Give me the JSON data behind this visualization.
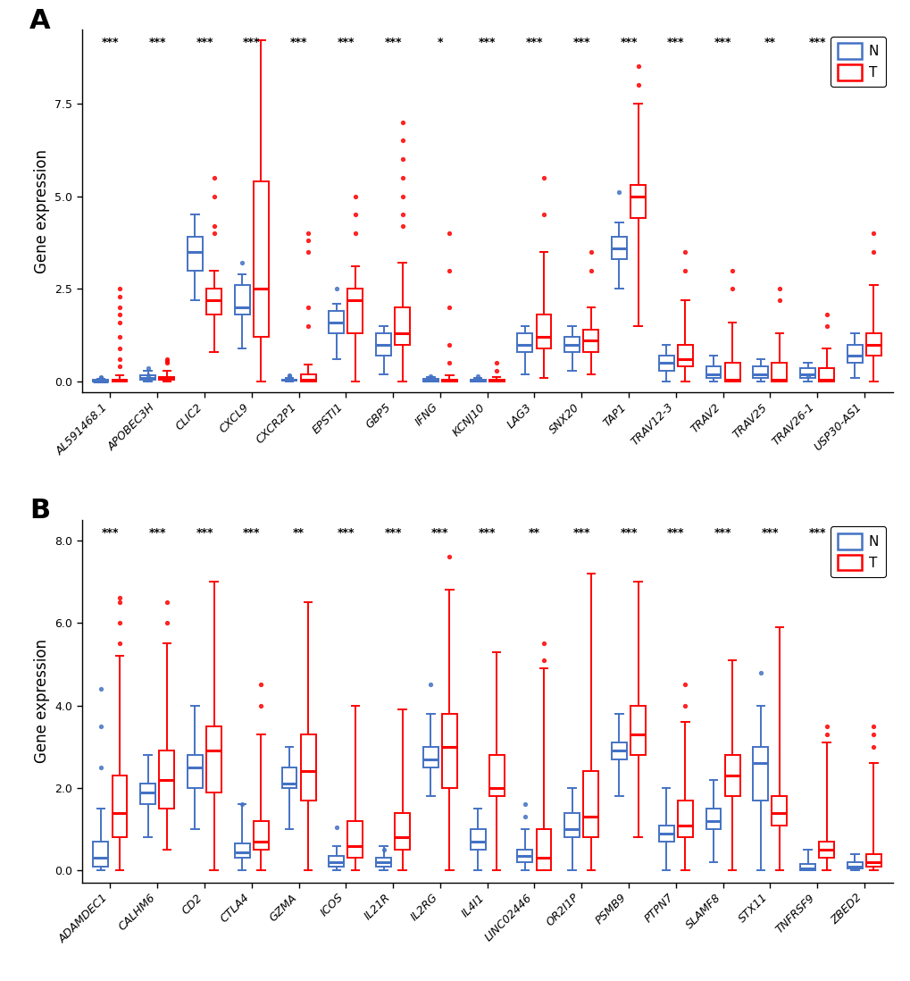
{
  "panel_A": {
    "genes": [
      "AL591468.1",
      "APOBEC3H",
      "CLIC2",
      "CXCL9",
      "CXCR2P1",
      "EPSTI1",
      "GBP5",
      "IFNG",
      "KCNJ10",
      "LAG3",
      "SNX20",
      "TAP1",
      "TRAV12-3",
      "TRAV2",
      "TRAV25",
      "TRAV26-1",
      "USP30-AS1"
    ],
    "significance": [
      "***",
      "***",
      "***",
      "***",
      "***",
      "***",
      "***",
      "*",
      "***",
      "***",
      "***",
      "***",
      "***",
      "***",
      "**",
      "***",
      "***"
    ],
    "ylim": [
      -0.3,
      9.5
    ],
    "yticks": [
      0.0,
      2.5,
      5.0,
      7.5
    ],
    "ytick_labels": [
      "0.0",
      "2.5",
      "5.0",
      "7.5"
    ],
    "ylabel": "Gene expression",
    "normal_boxes": [
      {
        "q1": 0.0,
        "med": 0.01,
        "q3": 0.04,
        "whislo": 0.0,
        "whishi": 0.08,
        "fliers": [
          0.12,
          0.09,
          0.07
        ]
      },
      {
        "q1": 0.05,
        "med": 0.1,
        "q3": 0.17,
        "whislo": 0.0,
        "whishi": 0.28,
        "fliers": [
          0.35,
          0.16
        ]
      },
      {
        "q1": 3.0,
        "med": 3.5,
        "q3": 3.9,
        "whislo": 2.2,
        "whishi": 4.5,
        "fliers": []
      },
      {
        "q1": 1.8,
        "med": 2.0,
        "q3": 2.6,
        "whislo": 0.9,
        "whishi": 2.9,
        "fliers": [
          3.2
        ]
      },
      {
        "q1": 0.02,
        "med": 0.04,
        "q3": 0.06,
        "whislo": 0.0,
        "whishi": 0.1,
        "fliers": [
          0.14,
          0.18
        ]
      },
      {
        "q1": 1.3,
        "med": 1.6,
        "q3": 1.9,
        "whislo": 0.6,
        "whishi": 2.1,
        "fliers": [
          2.5
        ]
      },
      {
        "q1": 0.7,
        "med": 1.0,
        "q3": 1.3,
        "whislo": 0.2,
        "whishi": 1.5,
        "fliers": []
      },
      {
        "q1": 0.01,
        "med": 0.03,
        "q3": 0.07,
        "whislo": 0.0,
        "whishi": 0.12,
        "fliers": [
          0.15
        ]
      },
      {
        "q1": 0.01,
        "med": 0.02,
        "q3": 0.04,
        "whislo": 0.0,
        "whishi": 0.09,
        "fliers": [
          0.14
        ]
      },
      {
        "q1": 0.8,
        "med": 1.0,
        "q3": 1.3,
        "whislo": 0.2,
        "whishi": 1.5,
        "fliers": []
      },
      {
        "q1": 0.8,
        "med": 1.0,
        "q3": 1.2,
        "whislo": 0.3,
        "whishi": 1.5,
        "fliers": []
      },
      {
        "q1": 3.3,
        "med": 3.6,
        "q3": 3.9,
        "whislo": 2.5,
        "whishi": 4.3,
        "fliers": [
          5.1
        ]
      },
      {
        "q1": 0.3,
        "med": 0.5,
        "q3": 0.7,
        "whislo": 0.0,
        "whishi": 1.0,
        "fliers": []
      },
      {
        "q1": 0.1,
        "med": 0.2,
        "q3": 0.4,
        "whislo": 0.0,
        "whishi": 0.7,
        "fliers": []
      },
      {
        "q1": 0.1,
        "med": 0.2,
        "q3": 0.4,
        "whislo": 0.0,
        "whishi": 0.6,
        "fliers": []
      },
      {
        "q1": 0.1,
        "med": 0.2,
        "q3": 0.35,
        "whislo": 0.0,
        "whishi": 0.5,
        "fliers": [
          0.15
        ]
      },
      {
        "q1": 0.5,
        "med": 0.7,
        "q3": 1.0,
        "whislo": 0.1,
        "whishi": 1.3,
        "fliers": []
      }
    ],
    "tumor_boxes": [
      {
        "q1": 0.0,
        "med": 0.02,
        "q3": 0.06,
        "whislo": 0.0,
        "whishi": 0.18,
        "fliers": [
          0.4,
          0.6,
          0.9,
          1.2,
          1.6,
          2.0,
          2.3,
          2.5,
          1.8
        ]
      },
      {
        "q1": 0.06,
        "med": 0.09,
        "q3": 0.13,
        "whislo": 0.0,
        "whishi": 0.28,
        "fliers": [
          0.5,
          0.6,
          0.55
        ]
      },
      {
        "q1": 1.8,
        "med": 2.2,
        "q3": 2.5,
        "whislo": 0.8,
        "whishi": 3.0,
        "fliers": [
          4.0,
          4.2,
          5.0,
          5.5
        ]
      },
      {
        "q1": 1.2,
        "med": 2.5,
        "q3": 5.4,
        "whislo": 0.0,
        "whishi": 9.2,
        "fliers": []
      },
      {
        "q1": 0.0,
        "med": 0.05,
        "q3": 0.2,
        "whislo": 0.0,
        "whishi": 0.45,
        "fliers": [
          1.5,
          2.0,
          3.5,
          4.0,
          3.8
        ]
      },
      {
        "q1": 1.3,
        "med": 2.2,
        "q3": 2.5,
        "whislo": 0.0,
        "whishi": 3.1,
        "fliers": [
          4.0,
          5.0,
          4.5
        ]
      },
      {
        "q1": 1.0,
        "med": 1.3,
        "q3": 2.0,
        "whislo": 0.0,
        "whishi": 3.2,
        "fliers": [
          4.5,
          5.0,
          5.5,
          6.0,
          6.5,
          7.0,
          4.2
        ]
      },
      {
        "q1": 0.01,
        "med": 0.03,
        "q3": 0.06,
        "whislo": 0.0,
        "whishi": 0.18,
        "fliers": [
          0.5,
          1.0,
          2.0,
          3.0,
          4.0
        ]
      },
      {
        "q1": 0.01,
        "med": 0.03,
        "q3": 0.06,
        "whislo": 0.0,
        "whishi": 0.12,
        "fliers": [
          0.3,
          0.5
        ]
      },
      {
        "q1": 0.9,
        "med": 1.2,
        "q3": 1.8,
        "whislo": 0.1,
        "whishi": 3.5,
        "fliers": [
          4.5,
          5.5
        ]
      },
      {
        "q1": 0.8,
        "med": 1.1,
        "q3": 1.4,
        "whislo": 0.2,
        "whishi": 2.0,
        "fliers": [
          3.0,
          3.5
        ]
      },
      {
        "q1": 4.4,
        "med": 5.0,
        "q3": 5.3,
        "whislo": 1.5,
        "whishi": 7.5,
        "fliers": [
          8.0,
          8.5
        ]
      },
      {
        "q1": 0.4,
        "med": 0.6,
        "q3": 1.0,
        "whislo": 0.0,
        "whishi": 2.2,
        "fliers": [
          3.0,
          3.5
        ]
      },
      {
        "q1": 0.0,
        "med": 0.05,
        "q3": 0.5,
        "whislo": 0.0,
        "whishi": 1.6,
        "fliers": [
          2.5,
          3.0
        ]
      },
      {
        "q1": 0.0,
        "med": 0.05,
        "q3": 0.5,
        "whislo": 0.0,
        "whishi": 1.3,
        "fliers": [
          2.2,
          2.5
        ]
      },
      {
        "q1": 0.0,
        "med": 0.05,
        "q3": 0.35,
        "whislo": 0.0,
        "whishi": 0.9,
        "fliers": [
          1.5,
          1.8
        ]
      },
      {
        "q1": 0.7,
        "med": 1.0,
        "q3": 1.3,
        "whislo": 0.0,
        "whishi": 2.6,
        "fliers": [
          3.5,
          4.0
        ]
      }
    ]
  },
  "panel_B": {
    "genes": [
      "ADAMDEC1",
      "CALHM6",
      "CD2",
      "CTLA4",
      "GZMA",
      "ICOS",
      "IL21R",
      "IL2RG",
      "IL4I1",
      "LINC02446",
      "OR2I1P",
      "PSMB9",
      "PTPN7",
      "SLAMF8",
      "STX11",
      "TNFRSF9",
      "ZBED2"
    ],
    "significance": [
      "***",
      "***",
      "***",
      "***",
      "**",
      "***",
      "***",
      "***",
      "***",
      "**",
      "***",
      "***",
      "***",
      "***",
      "***",
      "***",
      "***"
    ],
    "ylim": [
      -0.3,
      8.5
    ],
    "yticks": [
      0.0,
      2.0,
      4.0,
      6.0,
      8.0
    ],
    "ytick_labels": [
      "0.0",
      "2.0",
      "4.0",
      "6.0",
      "8.0"
    ],
    "ylabel": "Gene expression",
    "normal_boxes": [
      {
        "q1": 0.1,
        "med": 0.3,
        "q3": 0.7,
        "whislo": 0.0,
        "whishi": 1.5,
        "fliers": [
          2.5,
          3.5,
          4.4
        ]
      },
      {
        "q1": 1.6,
        "med": 1.9,
        "q3": 2.1,
        "whislo": 0.8,
        "whishi": 2.8,
        "fliers": []
      },
      {
        "q1": 2.0,
        "med": 2.5,
        "q3": 2.8,
        "whislo": 1.0,
        "whishi": 4.0,
        "fliers": []
      },
      {
        "q1": 0.3,
        "med": 0.45,
        "q3": 0.65,
        "whislo": 0.0,
        "whishi": 1.6,
        "fliers": [
          1.6
        ]
      },
      {
        "q1": 2.0,
        "med": 2.1,
        "q3": 2.5,
        "whislo": 1.0,
        "whishi": 3.0,
        "fliers": []
      },
      {
        "q1": 0.1,
        "med": 0.2,
        "q3": 0.35,
        "whislo": 0.0,
        "whishi": 0.6,
        "fliers": [
          1.05
        ]
      },
      {
        "q1": 0.1,
        "med": 0.2,
        "q3": 0.3,
        "whislo": 0.0,
        "whishi": 0.6,
        "fliers": [
          0.5
        ]
      },
      {
        "q1": 2.5,
        "med": 2.7,
        "q3": 3.0,
        "whislo": 1.8,
        "whishi": 3.8,
        "fliers": [
          4.5
        ]
      },
      {
        "q1": 0.5,
        "med": 0.7,
        "q3": 1.0,
        "whislo": 0.0,
        "whishi": 1.5,
        "fliers": []
      },
      {
        "q1": 0.2,
        "med": 0.35,
        "q3": 0.5,
        "whislo": 0.0,
        "whishi": 1.0,
        "fliers": [
          1.3,
          1.6
        ]
      },
      {
        "q1": 0.8,
        "med": 1.0,
        "q3": 1.4,
        "whislo": 0.0,
        "whishi": 2.0,
        "fliers": []
      },
      {
        "q1": 2.7,
        "med": 2.9,
        "q3": 3.1,
        "whislo": 1.8,
        "whishi": 3.8,
        "fliers": []
      },
      {
        "q1": 0.7,
        "med": 0.9,
        "q3": 1.1,
        "whislo": 0.0,
        "whishi": 2.0,
        "fliers": []
      },
      {
        "q1": 1.0,
        "med": 1.2,
        "q3": 1.5,
        "whislo": 0.2,
        "whishi": 2.2,
        "fliers": []
      },
      {
        "q1": 1.7,
        "med": 2.6,
        "q3": 3.0,
        "whislo": 0.0,
        "whishi": 4.0,
        "fliers": [
          4.8
        ]
      },
      {
        "q1": 0.0,
        "med": 0.05,
        "q3": 0.15,
        "whislo": 0.0,
        "whishi": 0.5,
        "fliers": []
      },
      {
        "q1": 0.05,
        "med": 0.1,
        "q3": 0.2,
        "whislo": 0.0,
        "whishi": 0.4,
        "fliers": []
      }
    ],
    "tumor_boxes": [
      {
        "q1": 0.8,
        "med": 1.4,
        "q3": 2.3,
        "whislo": 0.0,
        "whishi": 5.2,
        "fliers": [
          5.5,
          6.0,
          6.5,
          6.6
        ]
      },
      {
        "q1": 1.5,
        "med": 2.2,
        "q3": 2.9,
        "whislo": 0.5,
        "whishi": 5.5,
        "fliers": [
          6.0,
          6.5
        ]
      },
      {
        "q1": 1.9,
        "med": 2.9,
        "q3": 3.5,
        "whislo": 0.0,
        "whishi": 7.0,
        "fliers": []
      },
      {
        "q1": 0.5,
        "med": 0.7,
        "q3": 1.2,
        "whislo": 0.0,
        "whishi": 3.3,
        "fliers": [
          4.0,
          4.5
        ]
      },
      {
        "q1": 1.7,
        "med": 2.4,
        "q3": 3.3,
        "whislo": 0.0,
        "whishi": 6.5,
        "fliers": []
      },
      {
        "q1": 0.3,
        "med": 0.6,
        "q3": 1.2,
        "whislo": 0.0,
        "whishi": 4.0,
        "fliers": []
      },
      {
        "q1": 0.5,
        "med": 0.8,
        "q3": 1.4,
        "whislo": 0.0,
        "whishi": 3.9,
        "fliers": []
      },
      {
        "q1": 2.0,
        "med": 3.0,
        "q3": 3.8,
        "whislo": 0.0,
        "whishi": 6.8,
        "fliers": [
          7.6
        ]
      },
      {
        "q1": 1.8,
        "med": 2.0,
        "q3": 2.8,
        "whislo": 0.0,
        "whishi": 5.3,
        "fliers": []
      },
      {
        "q1": 0.0,
        "med": 0.3,
        "q3": 1.0,
        "whislo": 0.0,
        "whishi": 4.9,
        "fliers": [
          5.1,
          5.5
        ]
      },
      {
        "q1": 0.8,
        "med": 1.3,
        "q3": 2.4,
        "whislo": 0.0,
        "whishi": 7.2,
        "fliers": []
      },
      {
        "q1": 2.8,
        "med": 3.3,
        "q3": 4.0,
        "whislo": 0.8,
        "whishi": 7.0,
        "fliers": []
      },
      {
        "q1": 0.8,
        "med": 1.1,
        "q3": 1.7,
        "whislo": 0.0,
        "whishi": 3.6,
        "fliers": [
          4.0,
          4.5
        ]
      },
      {
        "q1": 1.8,
        "med": 2.3,
        "q3": 2.8,
        "whislo": 0.0,
        "whishi": 5.1,
        "fliers": []
      },
      {
        "q1": 1.1,
        "med": 1.4,
        "q3": 1.8,
        "whislo": 0.0,
        "whishi": 5.9,
        "fliers": []
      },
      {
        "q1": 0.3,
        "med": 0.5,
        "q3": 0.7,
        "whislo": 0.0,
        "whishi": 3.1,
        "fliers": [
          3.3,
          3.5
        ]
      },
      {
        "q1": 0.1,
        "med": 0.2,
        "q3": 0.4,
        "whislo": 0.0,
        "whishi": 2.6,
        "fliers": [
          3.0,
          3.3,
          3.5
        ]
      }
    ]
  },
  "blue_color": "#4472C4",
  "red_color": "#FF0000",
  "background_color": "#FFFFFF",
  "panel_label_fontsize": 22,
  "tick_label_fontsize": 9,
  "sig_fontsize": 9,
  "ylabel_fontsize": 12,
  "legend_fontsize": 11
}
